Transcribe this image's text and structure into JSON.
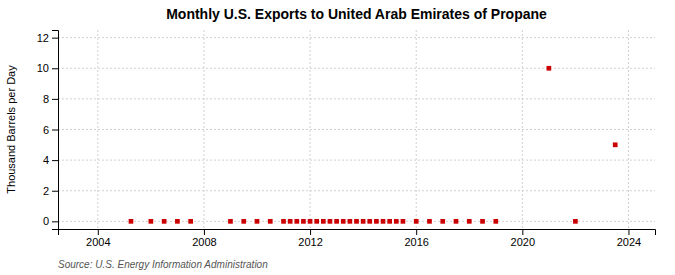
{
  "chart_data": {
    "type": "scatter",
    "title": "Monthly U.S. Exports to United Arab Emirates of Propane",
    "ylabel": "Thousand Barrels per Day",
    "source": "Source: U.S. Energy Information Administration",
    "x": [
      2005.25,
      2006.0,
      2006.5,
      2007.0,
      2007.5,
      2009.0,
      2009.5,
      2010.0,
      2010.5,
      2011.0,
      2011.25,
      2011.5,
      2011.75,
      2012.0,
      2012.25,
      2012.5,
      2012.75,
      2013.0,
      2013.25,
      2013.5,
      2013.75,
      2014.0,
      2014.25,
      2014.5,
      2014.75,
      2015.0,
      2015.25,
      2015.5,
      2016.0,
      2016.5,
      2017.0,
      2017.5,
      2018.0,
      2018.5,
      2019.0,
      2021.0,
      2022.0,
      2023.5
    ],
    "values": [
      0.0,
      0.0,
      0.0,
      0.0,
      0.0,
      0.0,
      0.0,
      0.0,
      0.0,
      0.0,
      0.0,
      0.0,
      0.0,
      0.0,
      0.0,
      0.0,
      0.0,
      0.0,
      0.0,
      0.0,
      0.0,
      0.0,
      0.0,
      0.0,
      0.0,
      0.0,
      0.0,
      0.0,
      0.0,
      0.0,
      0.0,
      0.0,
      0.0,
      0.0,
      0.0,
      10.0,
      0.0,
      5.0
    ],
    "color": "#cc0000",
    "marker": "square",
    "xlim": [
      2002.5,
      2025.0
    ],
    "ylim": [
      -0.5,
      12.5
    ],
    "xticks": [
      2004,
      2008,
      2012,
      2016,
      2020,
      2024
    ],
    "yticks": [
      0,
      2,
      4,
      6,
      8,
      10,
      12
    ],
    "grid": true
  }
}
